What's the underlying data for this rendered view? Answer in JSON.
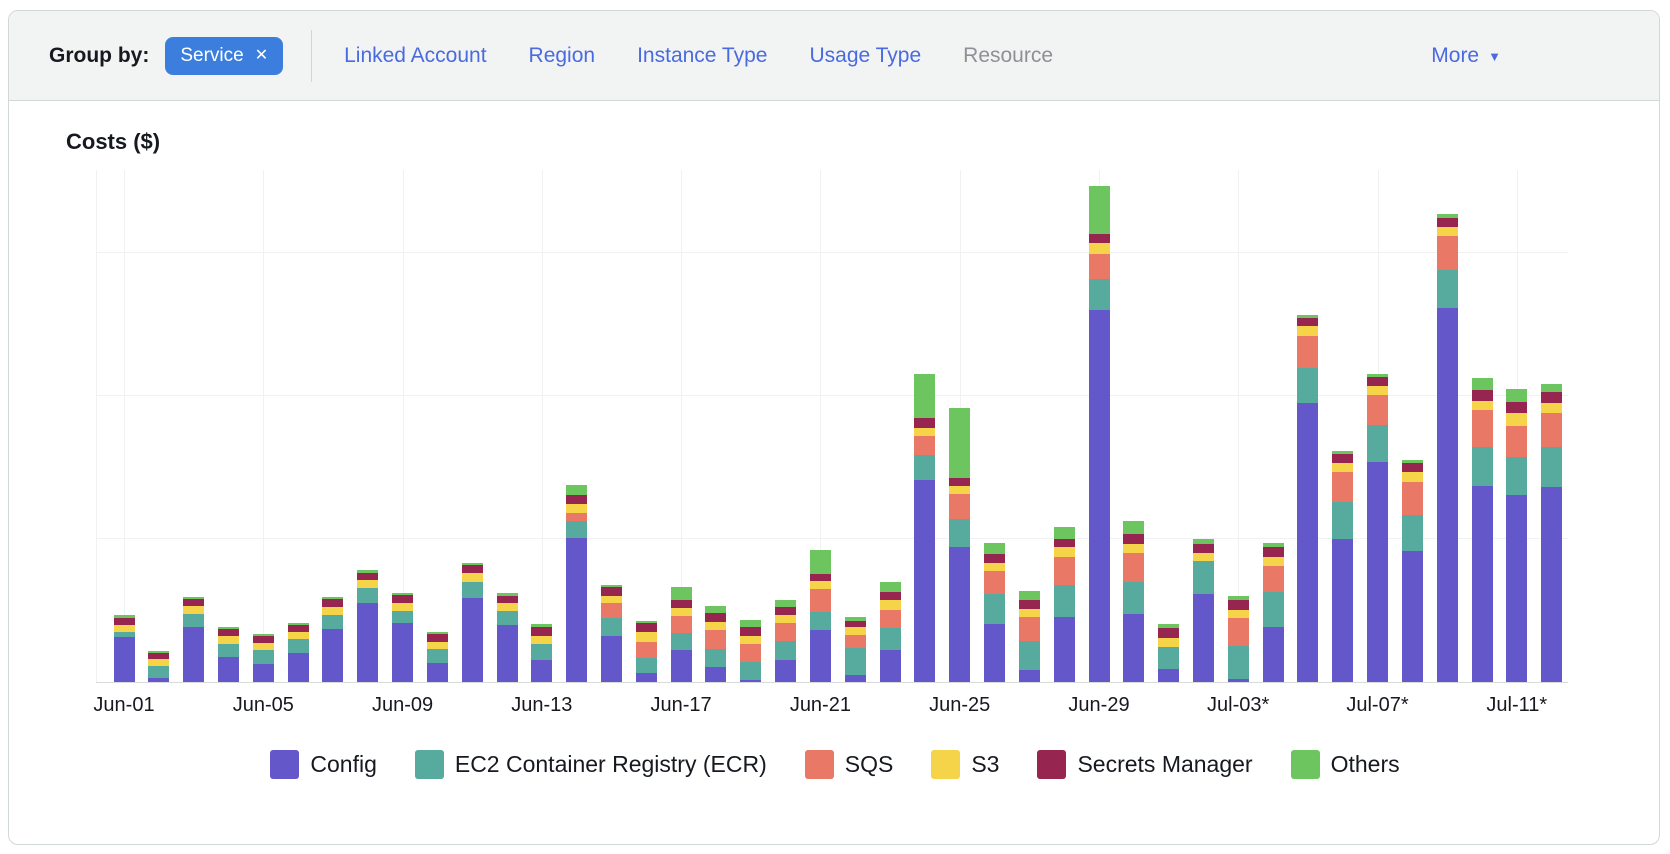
{
  "toolbar": {
    "group_by_label": "Group by:",
    "chip": {
      "label": "Service",
      "remove_icon": "✕"
    },
    "options": [
      {
        "label": "Linked Account",
        "enabled": true
      },
      {
        "label": "Region",
        "enabled": true
      },
      {
        "label": "Instance Type",
        "enabled": true
      },
      {
        "label": "Usage Type",
        "enabled": true
      },
      {
        "label": "Resource",
        "enabled": false
      }
    ],
    "more_label": "More",
    "colors": {
      "chip_bg": "#3B7EDD",
      "link": "#4A6BE0",
      "disabled_link": "#8D9096"
    }
  },
  "chart_data": {
    "type": "bar",
    "stacked": true,
    "title": "Costs ($)",
    "ylabel": "Costs ($)",
    "xlabel": "",
    "grid": true,
    "legend_position": "bottom",
    "y_axis": {
      "tick_labels_visible": false,
      "note": "No y-axis value labels shown; values below are proportional units where 143 = one horizontal gridline interval",
      "gridline_interval_units": 143
    },
    "tick_every": 4,
    "x_tick_labels": [
      "Jun-01",
      "Jun-05",
      "Jun-09",
      "Jun-13",
      "Jun-17",
      "Jun-21",
      "Jun-25",
      "Jun-29",
      "Jul-03*",
      "Jul-07*",
      "Jul-11*"
    ],
    "categories": [
      "Jun-01",
      "Jun-02",
      "Jun-03",
      "Jun-04",
      "Jun-05",
      "Jun-06",
      "Jun-07",
      "Jun-08",
      "Jun-09",
      "Jun-10",
      "Jun-11",
      "Jun-12",
      "Jun-13",
      "Jun-14",
      "Jun-15",
      "Jun-16",
      "Jun-17",
      "Jun-18",
      "Jun-19",
      "Jun-20",
      "Jun-21",
      "Jun-22",
      "Jun-23",
      "Jun-24",
      "Jun-25",
      "Jun-26",
      "Jun-27",
      "Jun-28",
      "Jun-29",
      "Jun-30",
      "Jul-01",
      "Jul-02",
      "Jul-03",
      "Jul-04",
      "Jul-05",
      "Jul-06",
      "Jul-07",
      "Jul-08",
      "Jul-09",
      "Jul-10",
      "Jul-11",
      "Jul-12"
    ],
    "series": [
      {
        "name": "Config",
        "color": "#6457C9",
        "values": [
          45,
          4,
          55,
          25,
          18,
          29,
          53,
          79,
          59,
          19,
          84,
          57,
          22,
          144,
          46,
          9,
          32,
          15,
          2,
          22,
          52,
          7,
          32,
          202,
          135,
          58,
          12,
          65,
          372,
          68,
          13,
          88,
          3,
          55,
          279,
          143,
          220,
          131,
          374,
          196,
          187,
          195
        ]
      },
      {
        "name": "EC2 Container Registry (ECR)",
        "color": "#56AB9E",
        "values": [
          5,
          12,
          13,
          13,
          14,
          14,
          14,
          15,
          12,
          14,
          16,
          14,
          16,
          17,
          18,
          15,
          17,
          18,
          18,
          19,
          18,
          27,
          22,
          25,
          28,
          30,
          29,
          32,
          31,
          32,
          22,
          33,
          33,
          35,
          35,
          37,
          37,
          36,
          38,
          39,
          38,
          40
        ]
      },
      {
        "name": "SQS",
        "color": "#E97866",
        "values": [
          0,
          0,
          0,
          0,
          0,
          0,
          0,
          0,
          0,
          0,
          0,
          0,
          0,
          8,
          15,
          16,
          17,
          19,
          18,
          18,
          23,
          13,
          18,
          19,
          25,
          23,
          24,
          28,
          25,
          29,
          0,
          0,
          28,
          26,
          32,
          30,
          30,
          33,
          34,
          37,
          31,
          34
        ]
      },
      {
        "name": "S3",
        "color": "#F6D44A",
        "values": [
          7,
          7,
          8,
          8,
          7,
          7,
          8,
          8,
          8,
          7,
          9,
          8,
          8,
          9,
          7,
          10,
          8,
          8,
          8,
          8,
          8,
          8,
          10,
          8,
          8,
          8,
          8,
          10,
          11,
          9,
          9,
          8,
          8,
          9,
          10,
          9,
          9,
          10,
          9,
          9,
          13,
          10
        ]
      },
      {
        "name": "Secrets Manager",
        "color": "#96254F",
        "values": [
          7,
          6,
          7,
          7,
          7,
          7,
          8,
          7,
          8,
          8,
          8,
          7,
          9,
          9,
          9,
          9,
          8,
          9,
          9,
          8,
          7,
          6,
          8,
          10,
          8,
          9,
          9,
          8,
          9,
          10,
          10,
          9,
          10,
          10,
          8,
          9,
          9,
          9,
          9,
          11,
          11,
          11
        ]
      },
      {
        "name": "Others",
        "color": "#6DC560",
        "values": [
          3,
          2,
          2,
          2,
          2,
          2,
          2,
          3,
          2,
          2,
          2,
          3,
          3,
          10,
          2,
          2,
          13,
          7,
          7,
          7,
          24,
          4,
          10,
          44,
          70,
          11,
          9,
          12,
          48,
          13,
          4,
          5,
          4,
          4,
          3,
          3,
          3,
          3,
          4,
          12,
          13,
          8
        ]
      }
    ]
  }
}
